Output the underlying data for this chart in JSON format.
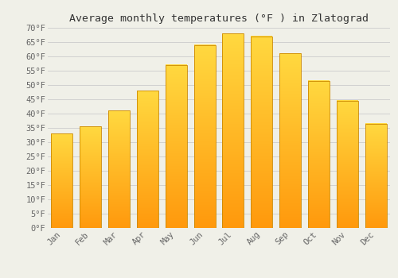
{
  "title": "Average monthly temperatures (°F ) in Zlatograd",
  "months": [
    "Jan",
    "Feb",
    "Mar",
    "Apr",
    "May",
    "Jun",
    "Jul",
    "Aug",
    "Sep",
    "Oct",
    "Nov",
    "Dec"
  ],
  "values": [
    33,
    35.5,
    41,
    48,
    57,
    64,
    68,
    67,
    61,
    51.5,
    44.5,
    36.5
  ],
  "ylim": [
    0,
    70
  ],
  "yticks": [
    0,
    5,
    10,
    15,
    20,
    25,
    30,
    35,
    40,
    45,
    50,
    55,
    60,
    65,
    70
  ],
  "ytick_labels": [
    "0°F",
    "5°F",
    "10°F",
    "15°F",
    "20°F",
    "25°F",
    "30°F",
    "35°F",
    "40°F",
    "45°F",
    "50°F",
    "55°F",
    "60°F",
    "65°F",
    "70°F"
  ],
  "bar_color_main": "#FFA500",
  "bar_color_light": "#FFD060",
  "bar_edge_color": "#CC8800",
  "background_color": "#F0F0E8",
  "grid_color": "#CCCCCC",
  "title_fontsize": 9.5,
  "tick_fontsize": 7.5,
  "title_font": "monospace",
  "tick_font": "monospace",
  "tick_color": "#666666"
}
